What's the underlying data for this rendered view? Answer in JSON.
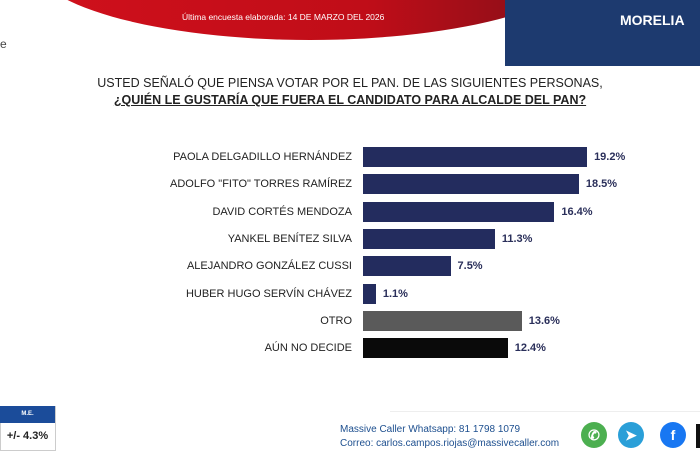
{
  "header": {
    "survey_date": "Última encuesta elaborada: 14 DE MARZO DEL 2026",
    "city": "MORELIA",
    "edge_letter": "e"
  },
  "chart_data": {
    "type": "bar",
    "orientation": "horizontal",
    "title": "USTED SEÑALÓ QUE PIENSA VOTAR POR EL PAN. DE LAS SIGUIENTES PERSONAS,",
    "subtitle": "¿QUIÉN LE GUSTARÍA QUE FUERA EL CANDIDATO PARA ALCALDE DEL PAN?",
    "categories": [
      "PAOLA DELGADILLO HERNÁNDEZ",
      "ADOLFO \"FITO\" TORRES RAMÍREZ",
      "DAVID CORTÉS MENDOZA",
      "YANKEL BENÍTEZ SILVA",
      "ALEJANDRO GONZÁLEZ CUSSI",
      "HUBER HUGO SERVÍN CHÁVEZ",
      "OTRO",
      "AÚN NO DECIDE"
    ],
    "values": [
      19.2,
      18.5,
      16.4,
      11.3,
      7.5,
      1.1,
      13.6,
      12.4
    ],
    "value_labels": [
      "19.2%",
      "18.5%",
      "16.4%",
      "11.3%",
      "7.5%",
      "1.1%",
      "13.6%",
      "12.4%"
    ],
    "colors": [
      "#232c5e",
      "#232c5e",
      "#232c5e",
      "#232c5e",
      "#232c5e",
      "#232c5e",
      "#5a5a5a",
      "#0a0a0a"
    ],
    "xlim": [
      0,
      20
    ],
    "grid": false
  },
  "margin_error": {
    "label": "M.E.",
    "value": "+/- 4.3%"
  },
  "footer": {
    "whatsapp": "Massive Caller Whatsapp: 81 1798 1079",
    "email": "Correo: carlos.campos.riojas@massivecaller.com",
    "icons": [
      {
        "name": "whatsapp-icon",
        "color": "#4caf50"
      },
      {
        "name": "telegram-icon",
        "color": "#2a9fd8"
      },
      {
        "name": "facebook-icon",
        "color": "#1877f2"
      }
    ]
  }
}
